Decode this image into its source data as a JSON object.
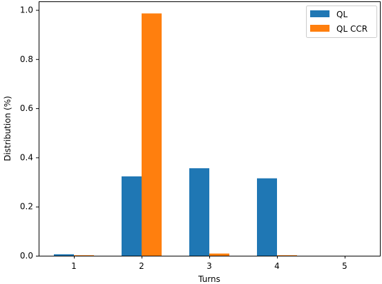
{
  "chart_data": {
    "type": "bar",
    "title": "",
    "xlabel": "Turns",
    "ylabel": "Distribution (%)",
    "categories": [
      "1",
      "2",
      "3",
      "4",
      "5"
    ],
    "series": [
      {
        "name": "QL",
        "values": [
          0.006,
          0.323,
          0.356,
          0.315,
          0.0
        ],
        "color": "#1f77b4"
      },
      {
        "name": "QL CCR",
        "values": [
          0.002,
          0.986,
          0.009,
          0.002,
          0.0
        ],
        "color": "#ff7f0e"
      }
    ],
    "ylim": [
      0,
      1.035
    ],
    "yticks": [
      "0.0",
      "0.2",
      "0.4",
      "0.6",
      "0.8",
      "1.0"
    ],
    "grid": false,
    "legend_position": "top-right"
  }
}
